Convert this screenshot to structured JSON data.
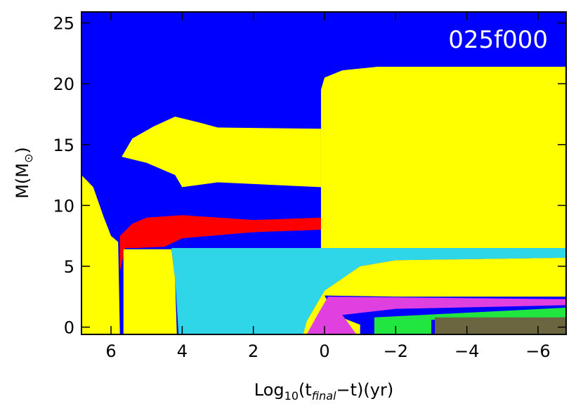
{
  "chart_data": {
    "type": "kippenhahn",
    "title": "025f000",
    "x_label": [
      "Log",
      "10",
      "(t",
      "final",
      "−t)(yr)"
    ],
    "y_label": [
      "M(M",
      "⊙",
      ")"
    ],
    "xlim": [
      6.83,
      -6.79
    ],
    "xticks": [
      6,
      4,
      2,
      0,
      {
        "value": -2,
        "label": "−2"
      },
      {
        "value": -4,
        "label": "−4"
      },
      {
        "value": -6,
        "label": "−6"
      }
    ],
    "ylim": [
      -0.6,
      25.9
    ],
    "yticks": [
      0,
      5,
      10,
      15,
      20,
      25
    ],
    "background": "#0000ff",
    "regions": [
      {
        "color": "#ffff00",
        "x": [
          0.1,
          0.1,
          0,
          -0.5,
          -1.5,
          -6.79,
          -6.79
        ],
        "y": [
          6.5,
          19.5,
          20.5,
          21.1,
          21.4,
          21.4,
          6.5
        ]
      },
      {
        "color": "#ffff00",
        "x": [
          5.7,
          5.4,
          4.8,
          4.2,
          3.5,
          3,
          0.1,
          0.1,
          3,
          4,
          4.2,
          5
        ],
        "y": [
          14,
          15.5,
          16.5,
          17.3,
          16.8,
          16.4,
          16.3,
          11.5,
          11.9,
          11.5,
          12.5,
          13.5
        ]
      },
      {
        "color": "#ff0000",
        "x": [
          5.75,
          5.75,
          5.4,
          5,
          4,
          2,
          0.1,
          0.1,
          2,
          4,
          4.5,
          5.3,
          5.6
        ],
        "y": [
          4.6,
          7.5,
          8.5,
          9,
          9.2,
          8.8,
          9,
          8,
          7.8,
          7.3,
          6.6,
          6.5,
          6.5
        ]
      },
      {
        "color": "#ffff00",
        "x": [
          6.83,
          6.83,
          6.5,
          6.2,
          6,
          5.8,
          5.75
        ],
        "y": [
          -0.6,
          12.5,
          11.5,
          9,
          7.5,
          7,
          -0.6
        ]
      },
      {
        "color": "#ffff00",
        "x": [
          5.65,
          5.65,
          4.3,
          4.2,
          4.15
        ],
        "y": [
          -0.6,
          6.4,
          6.4,
          4,
          -0.6
        ]
      },
      {
        "color": "#2fd6e8",
        "x": [
          4.3,
          -6.79,
          -6.79,
          -2,
          -1,
          0,
          0.5,
          0.6,
          4.1,
          4.2
        ],
        "y": [
          6.5,
          6.5,
          5.7,
          5.5,
          5,
          3,
          0.5,
          -0.6,
          -0.6,
          4
        ]
      },
      {
        "color": "#ffff00",
        "x": [
          0.6,
          0.5,
          0,
          -1,
          -2,
          -6.79,
          -6.79,
          -2,
          0,
          -0.3,
          -1,
          -1
        ],
        "y": [
          -0.6,
          0.5,
          3,
          5,
          5.5,
          5.7,
          2.5,
          2.5,
          2.6,
          1,
          0.2,
          -0.6
        ]
      },
      {
        "color": "#e040e0",
        "x": [
          0.5,
          0.2,
          -0.1,
          -6.79,
          -6.79,
          -2,
          -0.5,
          -0.9
        ],
        "y": [
          -0.6,
          1,
          2.5,
          2.3,
          1.8,
          1.5,
          1,
          -0.6
        ]
      },
      {
        "color": "#22e640",
        "x": [
          -1.4,
          -1.4,
          -6.79,
          -6.79,
          -3,
          -3
        ],
        "y": [
          -0.6,
          0.8,
          1.6,
          0.8,
          0.6,
          -0.6
        ]
      },
      {
        "color": "#6b6540",
        "x": [
          -3.1,
          -3.1,
          -6.79,
          -6.79
        ],
        "y": [
          -0.6,
          0.8,
          0.8,
          -0.6
        ]
      }
    ]
  }
}
